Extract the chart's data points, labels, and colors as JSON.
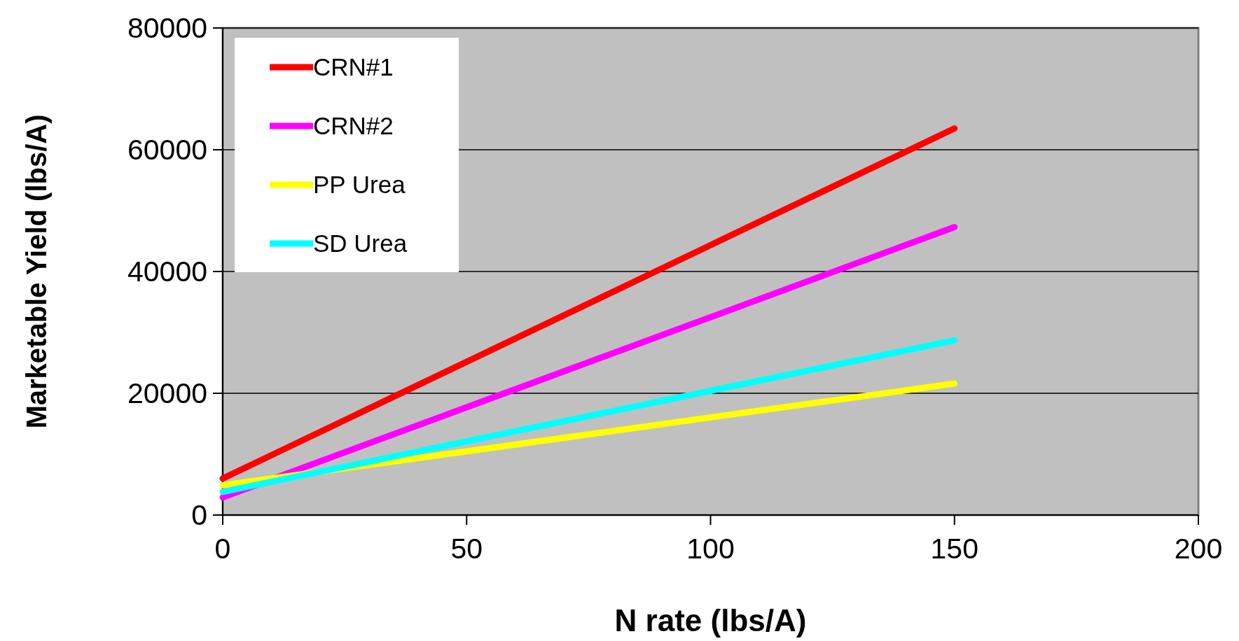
{
  "chart_data": {
    "type": "line",
    "xlabel": "N rate (lbs/A)",
    "ylabel": "Marketable Yield (lbs/A)",
    "xlim": [
      0,
      200
    ],
    "xticks": [
      0,
      50,
      100,
      150,
      200
    ],
    "ylim": [
      0,
      80000
    ],
    "yticks": [
      0,
      20000,
      40000,
      60000,
      80000
    ],
    "grid": "y",
    "legend": "top left",
    "marker": "none",
    "line_style": "solid",
    "x": [
      0,
      150
    ],
    "series": [
      {
        "name": "CRN#1",
        "color": "#ff0000",
        "values": [
          6000,
          63500
        ]
      },
      {
        "name": "CRN#2",
        "color": "#ff00ff",
        "values": [
          2900,
          47300
        ]
      },
      {
        "name": "PP Urea",
        "color": "#ffff00",
        "values": [
          4900,
          21600
        ]
      },
      {
        "name": "SD Urea",
        "color": "#00ffff",
        "values": [
          3800,
          28700
        ]
      }
    ]
  }
}
